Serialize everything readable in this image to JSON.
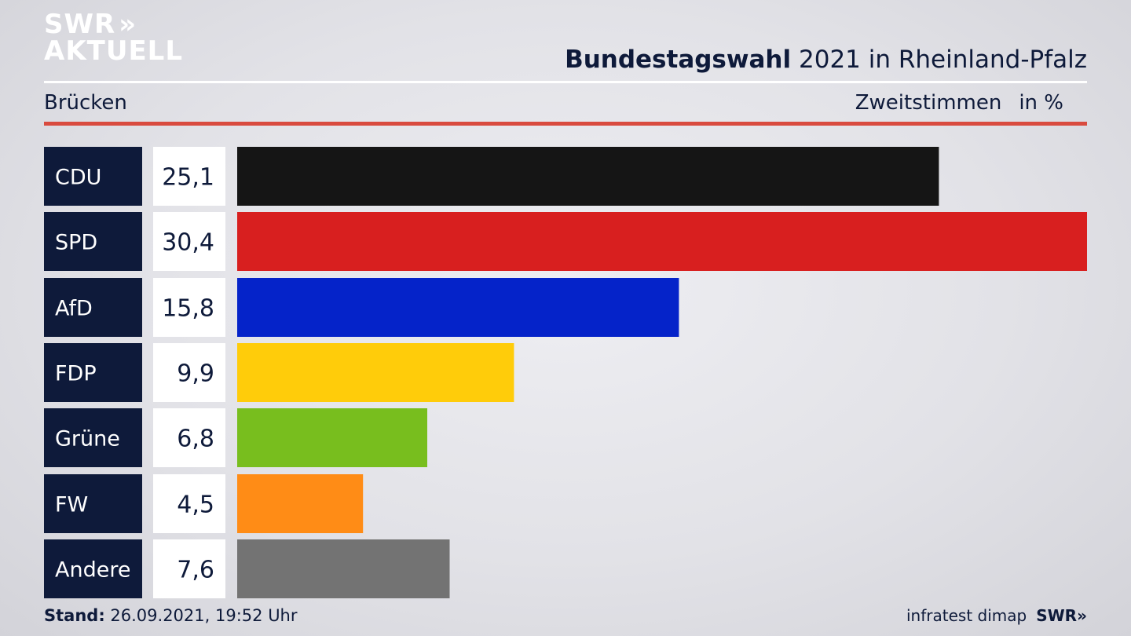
{
  "header": {
    "logo_line1": "SWR",
    "logo_line2": "AKTUELL",
    "logo_chevrons": "»",
    "title_bold": "Bundestagswahl",
    "title_rest": "2021 in Rheinland-Pfalz",
    "region": "Brücken",
    "subtitle_measure": "Zweitstimmen",
    "subtitle_unit": "in %"
  },
  "footer": {
    "stand_label": "Stand:",
    "stand_value": "26.09.2021, 19:52 Uhr",
    "source": "infratest dimap",
    "brand": "SWR»"
  },
  "chart_data": {
    "type": "bar",
    "orientation": "horizontal",
    "categories": [
      "CDU",
      "SPD",
      "AfD",
      "FDP",
      "Grüne",
      "FW",
      "Andere"
    ],
    "values": [
      25.1,
      30.4,
      15.8,
      9.9,
      6.8,
      4.5,
      7.6
    ],
    "value_labels": [
      "25,1",
      "30,4",
      "15,8",
      "9,9",
      "6,8",
      "4,5",
      "7,6"
    ],
    "colors": [
      "#151515",
      "#d81f1f",
      "#0523c9",
      "#ffcc0a",
      "#78be1e",
      "#ff8c16",
      "#737373"
    ],
    "label_box_color": "#0e1a3a",
    "xlim": [
      0,
      30.4
    ],
    "grid": false,
    "legend": "none"
  }
}
